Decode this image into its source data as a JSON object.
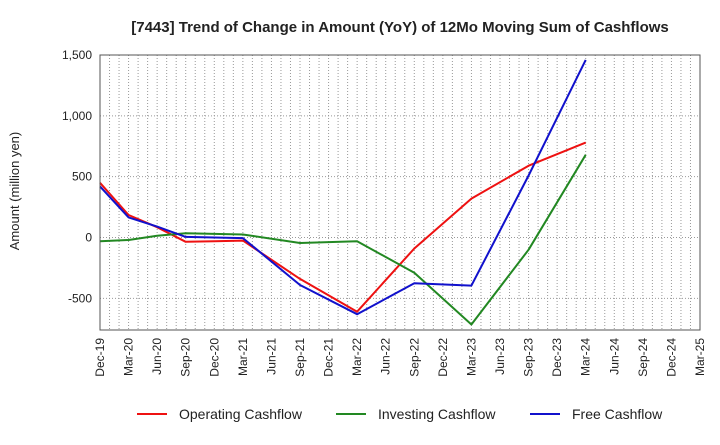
{
  "chart_data": {
    "type": "line",
    "title": "[7443]  Trend of Change in Amount (YoY) of 12Mo Moving Sum of Cashflows",
    "xlabel": "",
    "ylabel": "Amount (million yen)",
    "ylim": [
      -760,
      1500
    ],
    "yticks": [
      -500,
      0,
      500,
      1000,
      1500
    ],
    "ytick_labels": [
      "-500",
      "0",
      "500",
      "1,000",
      "1,500"
    ],
    "categories": [
      "Dec-19",
      "Mar-20",
      "Jun-20",
      "Sep-20",
      "Dec-20",
      "Mar-21",
      "Jun-21",
      "Sep-21",
      "Dec-21",
      "Mar-22",
      "Jun-22",
      "Sep-22",
      "Dec-22",
      "Mar-23",
      "Jun-23",
      "Sep-23",
      "Dec-23",
      "Mar-24",
      "Jun-24",
      "Sep-24",
      "Dec-24",
      "Mar-25"
    ],
    "grid": true,
    "legend_position": "bottom",
    "series": [
      {
        "name": "Operating Cashflow",
        "color": "#ee1111",
        "points": [
          [
            0,
            450
          ],
          [
            1,
            185
          ],
          [
            2,
            85
          ],
          [
            3,
            -35
          ],
          [
            4,
            -30
          ],
          [
            5,
            -25
          ],
          [
            7,
            -340
          ],
          [
            9,
            -610
          ],
          [
            11,
            -90
          ],
          [
            13,
            320
          ],
          [
            15,
            590
          ],
          [
            17,
            780
          ]
        ]
      },
      {
        "name": "Investing Cashflow",
        "color": "#228822",
        "points": [
          [
            0,
            -30
          ],
          [
            1,
            -20
          ],
          [
            2,
            15
          ],
          [
            3,
            35
          ],
          [
            5,
            25
          ],
          [
            7,
            -45
          ],
          [
            9,
            -30
          ],
          [
            11,
            -290
          ],
          [
            13,
            -715
          ],
          [
            15,
            -100
          ],
          [
            17,
            680
          ]
        ]
      },
      {
        "name": "Free Cashflow",
        "color": "#1111cc",
        "points": [
          [
            0,
            420
          ],
          [
            1,
            165
          ],
          [
            2,
            90
          ],
          [
            3,
            5
          ],
          [
            5,
            -5
          ],
          [
            7,
            -390
          ],
          [
            9,
            -630
          ],
          [
            11,
            -375
          ],
          [
            13,
            -395
          ],
          [
            15,
            510
          ],
          [
            17,
            1460
          ]
        ]
      }
    ]
  }
}
